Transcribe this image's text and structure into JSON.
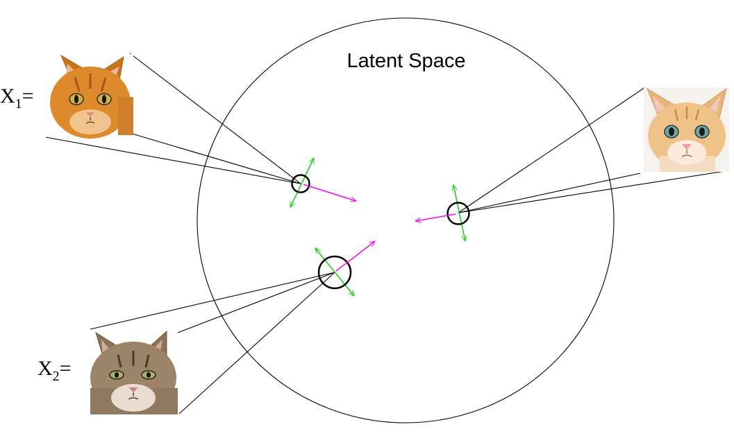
{
  "title": "Latent Space",
  "inputs": [
    {
      "label_main": "X",
      "label_sub": "1",
      "label_suffix": "=",
      "image": "orange-tabby-cat-photo"
    },
    {
      "label_main": "X",
      "label_sub": "2",
      "label_suffix": "=",
      "image": "brown-tabby-cat-photo"
    }
  ],
  "third_image": "orange-kitten-photo",
  "colors": {
    "circle": "#000000",
    "mean_arrow": "#ee11ee",
    "variance_arrow": "#22cc22",
    "lines": "#000000"
  }
}
